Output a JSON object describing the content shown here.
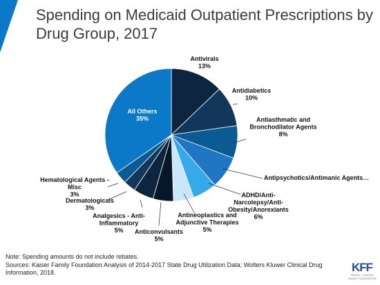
{
  "title": "Spending on Medicaid Outpatient Prescriptions by Drug Group, 2017",
  "note": "Note: Spending amounts do not include rebates.",
  "sources": "Sources: Kaiser Family Foundation Analysis of 2014-2017 State Drug Utilization Data; Wolters Kluwer Clinical Drug Information,  2018.",
  "logo": {
    "mark": "KFF",
    "subtitle": "HENRY J KAISER\nFAMILY FOUNDATION"
  },
  "chart_data": {
    "type": "pie",
    "title": "Spending on Medicaid Outpatient Prescriptions by Drug Group, 2017",
    "unit": "%",
    "slices": [
      {
        "name": "Antivirals",
        "value": 13,
        "label": "13%",
        "color": "#0d253f"
      },
      {
        "name": "Antidiabetics",
        "value": 10,
        "label": "10%",
        "color": "#13365b"
      },
      {
        "name": "Antiasthmatic and Bronchodilator Agents",
        "value": 8,
        "label": "8%",
        "color": "#0a5a94"
      },
      {
        "name": "Antipsychotics/Antimanic Agents…",
        "value": 8,
        "label": "",
        "color": "#1f77c4"
      },
      {
        "name": "ADHD/Anti-Narcolepsy/Anti-Obesity/Anorexiants",
        "value": 6,
        "label": "6%",
        "color": "#35a9ea"
      },
      {
        "name": "Antineoplastics and Adjunctive Therapies",
        "value": 5,
        "label": "5%",
        "color": "#c9e6fa"
      },
      {
        "name": "Anticonvulsants",
        "value": 5,
        "label": "5%",
        "color": "#06172a"
      },
      {
        "name": "Analgesics - Anti-Inflammatory",
        "value": 5,
        "label": "5%",
        "color": "#0d253f"
      },
      {
        "name": "Dermatologicals",
        "value": 3,
        "label": "3%",
        "color": "#13365b"
      },
      {
        "name": "Hematological Agents - Misc",
        "value": 3,
        "label": "3%",
        "color": "#0a5a94"
      },
      {
        "name": "All Others",
        "value": 35,
        "label": "35%",
        "color": "#0b78c8"
      }
    ]
  }
}
